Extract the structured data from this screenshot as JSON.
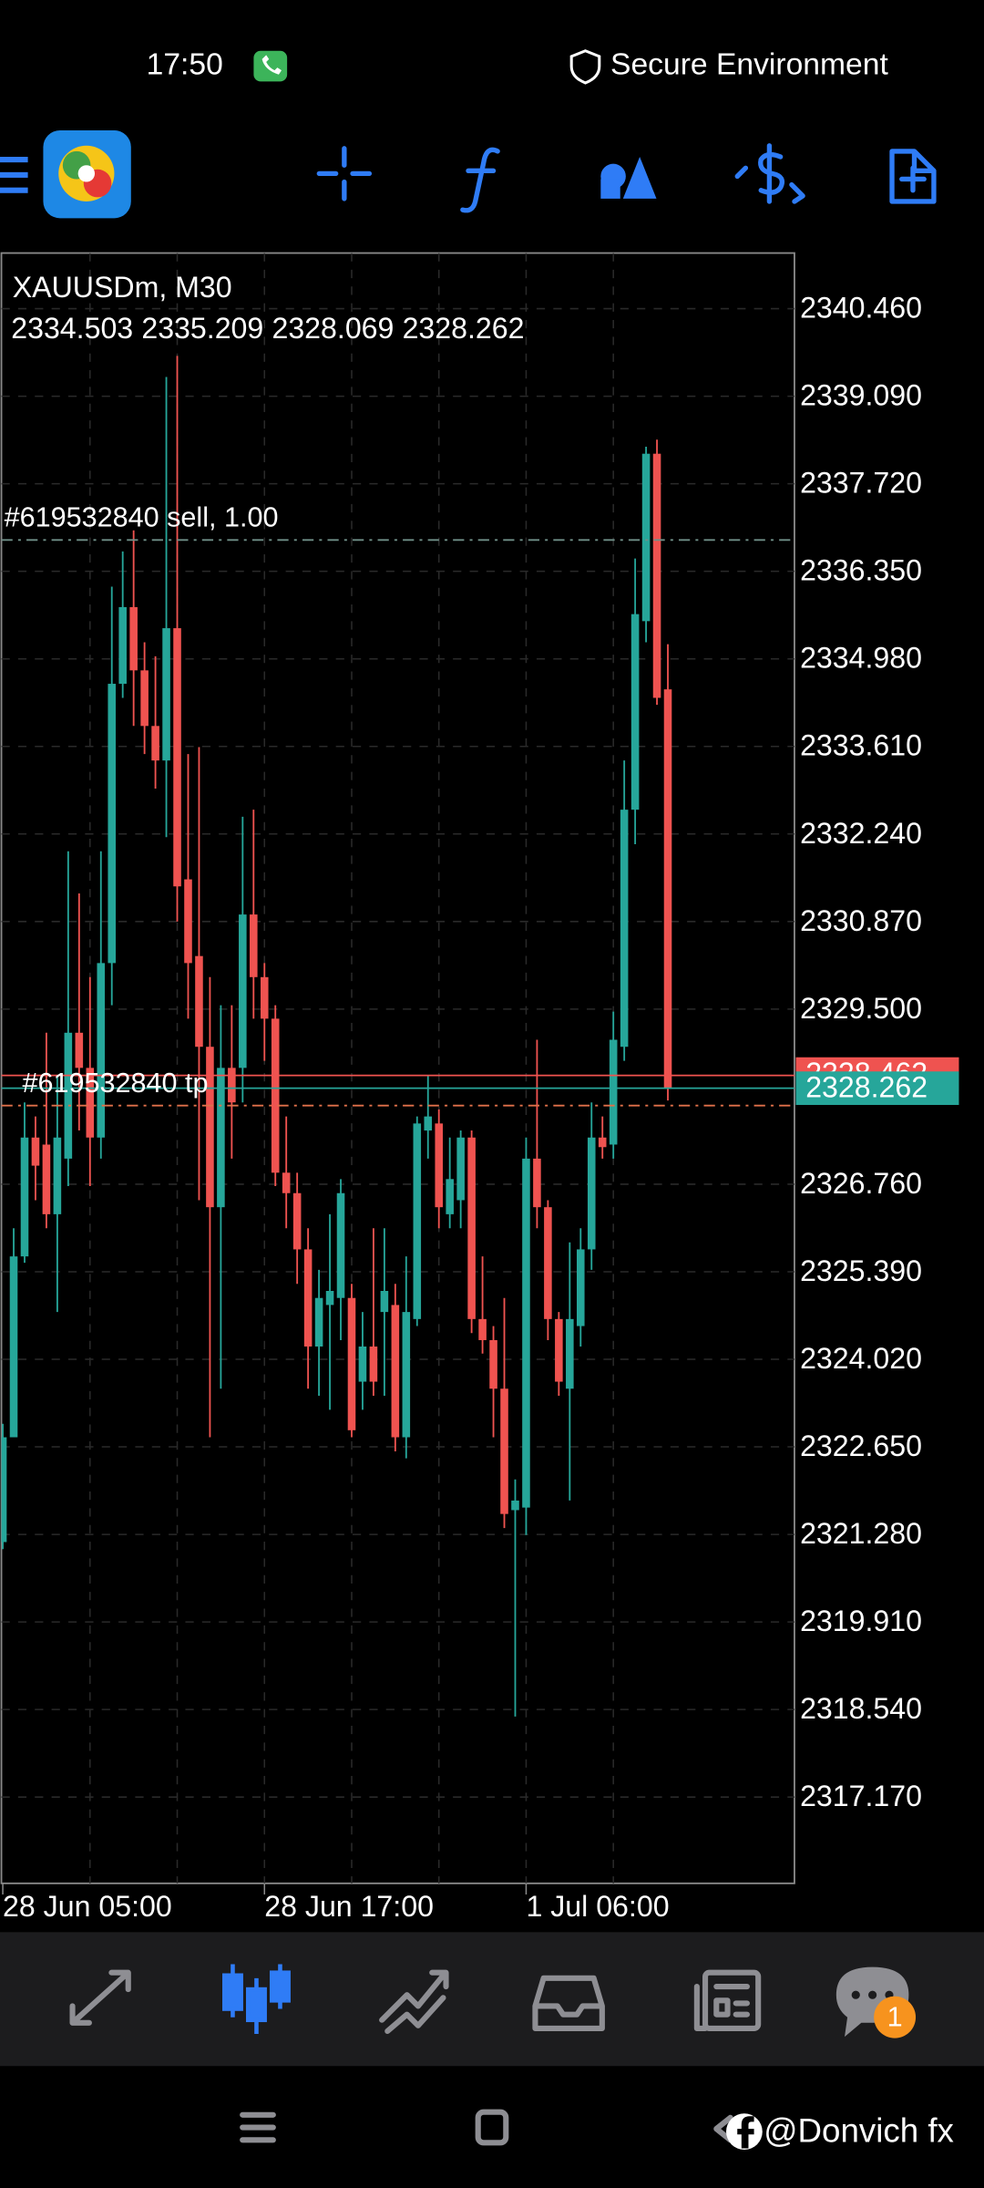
{
  "status_bar": {
    "time": "17:50",
    "status": "Secure Environment"
  },
  "chart_data": {
    "type": "candlestick",
    "title": "XAUUSDm, M30",
    "categories": [
      "28 Jun 05:00",
      null,
      null,
      null,
      null,
      null,
      null,
      null,
      null,
      null,
      null,
      null,
      null,
      null,
      null,
      null,
      null,
      null,
      null,
      null,
      null,
      null,
      null,
      null,
      "28 Jun 17:00",
      null,
      null,
      null,
      null,
      null,
      null,
      null,
      null,
      null,
      null,
      null,
      null,
      null,
      null,
      null,
      null,
      null,
      null,
      null,
      null,
      null,
      null,
      null,
      "1 Jul 06:00",
      null,
      null,
      null,
      null,
      null,
      null,
      null,
      null,
      null,
      null,
      null,
      null,
      null
    ],
    "open": [
      2321.16,
      2322.8,
      2325.63,
      2327.49,
      2327.38,
      2326.29,
      2327.16,
      2329.13,
      2328.58,
      2327.49,
      2330.22,
      2334.59,
      2335.79,
      2334.8,
      2333.93,
      2333.39,
      2335.46,
      2331.53,
      2330.33,
      2328.91,
      2326.4,
      2328.58,
      2328.58,
      2330.98,
      2330.0,
      2329.35,
      2326.94,
      2326.62,
      2325.74,
      2324.22,
      2324.87,
      2324.98,
      2324.98,
      2323.67,
      2324.22,
      2324.76,
      2324.87,
      2322.8,
      2324.65,
      2327.6,
      2327.71,
      2326.29,
      2326.51,
      2327.49,
      2324.65,
      2324.32,
      2323.56,
      2321.66,
      2321.7,
      2327.16,
      2326.4,
      2324.65,
      2323.56,
      2324.54,
      2325.74,
      2327.49,
      2327.38,
      2328.91,
      2332.62,
      2335.57,
      2338.19,
      2334.503
    ],
    "high": [
      2323.01,
      2326.07,
      2328.04,
      2327.82,
      2329.13,
      2328.47,
      2331.97,
      2331.31,
      2330.0,
      2331.97,
      2336.11,
      2336.66,
      2336.99,
      2335.24,
      2335.02,
      2339.39,
      2339.72,
      2333.49,
      2333.6,
      2330.0,
      2329.56,
      2329.56,
      2332.51,
      2332.62,
      2330.22,
      2329.56,
      2327.82,
      2326.94,
      2326.07,
      2325.42,
      2326.29,
      2326.84,
      2325.2,
      2324.76,
      2326.07,
      2326.07,
      2325.2,
      2325.63,
      2327.82,
      2328.47,
      2327.93,
      2327.49,
      2327.6,
      2327.6,
      2325.63,
      2324.54,
      2324.98,
      2322.14,
      2327.49,
      2329.02,
      2326.51,
      2324.76,
      2325.85,
      2326.07,
      2328.04,
      2327.82,
      2329.46,
      2333.39,
      2336.55,
      2338.3,
      2338.41,
      2335.209
    ],
    "low": [
      2321.05,
      2322.8,
      2325.53,
      2326.51,
      2326.07,
      2324.76,
      2326.73,
      2327.6,
      2326.73,
      2327.16,
      2329.56,
      2334.37,
      2333.93,
      2333.49,
      2332.95,
      2332.19,
      2330.87,
      2329.35,
      2326.51,
      2322.8,
      2323.56,
      2327.16,
      2328.04,
      2329.35,
      2328.69,
      2326.73,
      2326.07,
      2325.2,
      2323.56,
      2323.45,
      2323.23,
      2324.32,
      2322.8,
      2323.23,
      2323.45,
      2323.45,
      2322.58,
      2322.47,
      2324.54,
      2327.16,
      2326.07,
      2326.07,
      2326.07,
      2324.43,
      2324.11,
      2322.8,
      2321.38,
      2318.43,
      2321.27,
      2326.07,
      2324.32,
      2323.45,
      2321.81,
      2324.22,
      2325.42,
      2327.16,
      2327.16,
      2328.69,
      2332.08,
      2335.24,
      2334.26,
      2328.069
    ],
    "close": [
      2322.8,
      2325.63,
      2327.49,
      2327.05,
      2326.29,
      2327.49,
      2329.13,
      2328.58,
      2327.49,
      2330.22,
      2334.59,
      2335.79,
      2334.8,
      2333.93,
      2333.39,
      2335.46,
      2331.42,
      2330.22,
      2328.91,
      2326.4,
      2328.58,
      2328.04,
      2330.98,
      2330.0,
      2329.35,
      2326.94,
      2326.62,
      2325.74,
      2324.22,
      2324.98,
      2325.09,
      2326.62,
      2322.91,
      2324.22,
      2323.67,
      2325.09,
      2322.8,
      2324.76,
      2327.71,
      2327.82,
      2326.4,
      2326.84,
      2327.49,
      2324.65,
      2324.32,
      2323.56,
      2321.6,
      2321.81,
      2327.16,
      2326.4,
      2324.65,
      2323.67,
      2324.65,
      2325.74,
      2327.49,
      2327.34,
      2329.02,
      2332.62,
      2335.68,
      2338.19,
      2334.37,
      2328.262
    ],
    "up_color": "#26a69a",
    "down_color": "#ef5350",
    "ylim": [
      2315.82,
      2341.33
    ],
    "yticks": [
      {
        "value": 2340.46,
        "label": "2340.460"
      },
      {
        "value": 2339.09,
        "label": "2339.090"
      },
      {
        "value": 2337.72,
        "label": "2337.720"
      },
      {
        "value": 2336.35,
        "label": "2336.350"
      },
      {
        "value": 2334.98,
        "label": "2334.980"
      },
      {
        "value": 2333.61,
        "label": "2333.610"
      },
      {
        "value": 2332.24,
        "label": "2332.240"
      },
      {
        "value": 2330.87,
        "label": "2330.870"
      },
      {
        "value": 2329.5,
        "label": "2329.500"
      },
      {
        "value": 2326.76,
        "label": "2326.760"
      },
      {
        "value": 2325.39,
        "label": "2325.390"
      },
      {
        "value": 2324.02,
        "label": "2324.020"
      },
      {
        "value": 2322.65,
        "label": "2322.650"
      },
      {
        "value": 2321.28,
        "label": "2321.280"
      },
      {
        "value": 2319.91,
        "label": "2319.910"
      },
      {
        "value": 2318.54,
        "label": "2318.540"
      },
      {
        "value": 2317.17,
        "label": "2317.170"
      }
    ],
    "grid": true,
    "bid": 2328.262,
    "bid_color": "#26a69a",
    "ask": 2328.462,
    "ask_color": "#ef5350",
    "orders": [
      {
        "label": "#619532840 sell, 1.00",
        "price": 2336.84,
        "color": "#6f8f88"
      },
      {
        "label": "#619532840 tp",
        "price": 2327.99,
        "color": "#e0704a"
      }
    ]
  },
  "bottom_nav": {
    "badge": "1"
  },
  "watermark": "@Donvich fx"
}
